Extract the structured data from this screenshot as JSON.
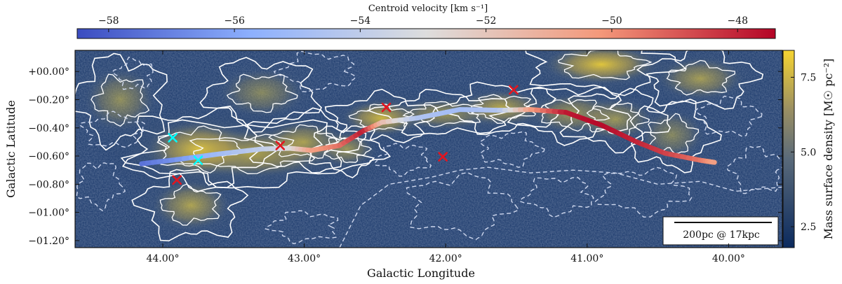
{
  "chart_data": {
    "type": "heatmap",
    "title": "",
    "xlabel": "Galactic Longitude",
    "ylabel": "Galactic Latitude",
    "xlim": [
      44.62,
      39.62
    ],
    "ylim": [
      -1.25,
      0.15
    ],
    "xticks": [
      44.0,
      43.0,
      42.0,
      41.0,
      40.0
    ],
    "xtick_labels": [
      "44.00°",
      "43.00°",
      "42.00°",
      "41.00°",
      "40.00°"
    ],
    "yticks": [
      0.0,
      -0.2,
      -0.4,
      -0.6,
      -0.8,
      -1.0,
      -1.2
    ],
    "ytick_labels": [
      "+00.00°",
      "−00.20°",
      "−00.40°",
      "−00.60°",
      "−00.80°",
      "−01.00°",
      "−01.20°"
    ],
    "grid": false,
    "colormap_background": {
      "label": "Mass surface density [M☉ pc⁻²]",
      "range": [
        1.8,
        8.4
      ],
      "ticks": [
        2.5,
        5.0,
        7.5
      ],
      "tick_labels": [
        "2.5",
        "5.0",
        "7.5"
      ],
      "low_color": "#0b2a5e",
      "mid_color": "#7c7c6e",
      "high_color": "#f6d431"
    },
    "colormap_velocity": {
      "label": "Centroid velocity [km s⁻¹]",
      "range": [
        -58.5,
        -47.4
      ],
      "ticks": [
        -58,
        -56,
        -54,
        -52,
        -50,
        -48
      ],
      "tick_labels": [
        "−58",
        "−56",
        "−54",
        "−52",
        "−50",
        "−48"
      ],
      "colors": [
        "#3b4cc0",
        "#8db0fe",
        "#dddddd",
        "#f4987a",
        "#b40426"
      ]
    },
    "filament_spine": {
      "name": "spine",
      "points": [
        {
          "l": 44.15,
          "b": -0.655,
          "v": -57.5
        },
        {
          "l": 43.9,
          "b": -0.625,
          "v": -56.5
        },
        {
          "l": 43.6,
          "b": -0.585,
          "v": -55.0
        },
        {
          "l": 43.3,
          "b": -0.55,
          "v": -54.0
        },
        {
          "l": 43.1,
          "b": -0.545,
          "v": -53.0
        },
        {
          "l": 42.95,
          "b": -0.56,
          "v": -50.5
        },
        {
          "l": 42.75,
          "b": -0.525,
          "v": -49.5
        },
        {
          "l": 42.58,
          "b": -0.42,
          "v": -47.8
        },
        {
          "l": 42.45,
          "b": -0.36,
          "v": -51.5
        },
        {
          "l": 42.2,
          "b": -0.33,
          "v": -54.5
        },
        {
          "l": 41.9,
          "b": -0.27,
          "v": -55.0
        },
        {
          "l": 41.62,
          "b": -0.275,
          "v": -54.5
        },
        {
          "l": 41.4,
          "b": -0.27,
          "v": -50.5
        },
        {
          "l": 41.15,
          "b": -0.29,
          "v": -47.8
        },
        {
          "l": 40.9,
          "b": -0.38,
          "v": -47.5
        },
        {
          "l": 40.65,
          "b": -0.5,
          "v": -48.0
        },
        {
          "l": 40.45,
          "b": -0.58,
          "v": -48.5
        },
        {
          "l": 40.2,
          "b": -0.63,
          "v": -49.5
        },
        {
          "l": 40.1,
          "b": -0.645,
          "v": -50.5
        }
      ]
    },
    "markers": [
      {
        "l": 43.93,
        "b": -0.47,
        "color": "#00ffff"
      },
      {
        "l": 43.75,
        "b": -0.63,
        "color": "#00ffff"
      },
      {
        "l": 43.9,
        "b": -0.77,
        "color": "#e3151f"
      },
      {
        "l": 43.17,
        "b": -0.525,
        "color": "#e3151f"
      },
      {
        "l": 42.42,
        "b": -0.255,
        "color": "#e3151f"
      },
      {
        "l": 42.02,
        "b": -0.605,
        "color": "#e3151f"
      },
      {
        "l": 41.52,
        "b": -0.13,
        "color": "#e3151f"
      }
    ],
    "scalebar_label": "200pc @ 17kpc"
  }
}
